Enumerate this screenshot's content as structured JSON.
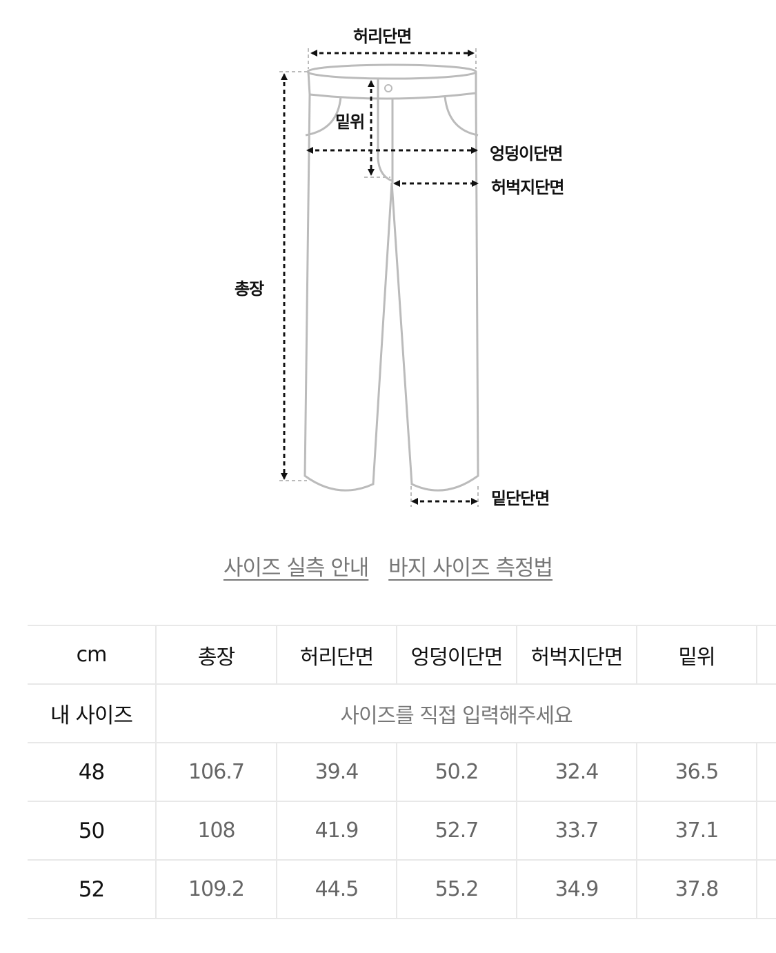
{
  "diagram": {
    "labels": {
      "waist": "허리단면",
      "rise": "밑위",
      "hip": "엉덩이단면",
      "thigh": "허벅지단면",
      "total_length": "총장",
      "hem": "밑단단면"
    },
    "line_color": "#bbbbbb"
  },
  "links": {
    "size_guide": "사이즈 실측 안내",
    "measure_method": "바지 사이즈 측정법"
  },
  "table": {
    "unit": "cm",
    "headers": [
      "총장",
      "허리단면",
      "엉덩이단면",
      "허벅지단면",
      "밑위"
    ],
    "my_size_label": "내 사이즈",
    "my_size_hint": "사이즈를 직접 입력해주세요",
    "rows": [
      {
        "size": "48",
        "values": [
          "106.7",
          "39.4",
          "50.2",
          "32.4",
          "36.5"
        ]
      },
      {
        "size": "50",
        "values": [
          "108",
          "41.9",
          "52.7",
          "33.7",
          "37.1"
        ]
      },
      {
        "size": "52",
        "values": [
          "109.2",
          "44.5",
          "55.2",
          "34.9",
          "37.8"
        ]
      }
    ]
  }
}
